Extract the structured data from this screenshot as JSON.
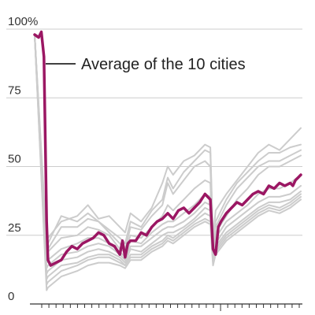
{
  "chart_data": {
    "type": "line",
    "title": "",
    "xlabel": "",
    "ylabel": "",
    "ylim": [
      0,
      100
    ],
    "xlim": [
      0,
      100
    ],
    "y_ticks": [
      {
        "value": 100,
        "label": "100%"
      },
      {
        "value": 75,
        "label": "75"
      },
      {
        "value": 50,
        "label": "50"
      },
      {
        "value": 25,
        "label": "25"
      },
      {
        "value": 0,
        "label": "0"
      }
    ],
    "x_tick_count": 37,
    "x_major_tick_index": 25,
    "grid": true,
    "annotation": "Average of the 10 cities",
    "colors": {
      "average": "#9b1763",
      "cities": "#cccccc",
      "grid": "#cccccc",
      "axis": "#333333",
      "text": "#333333"
    },
    "series": [
      {
        "name": "Average of the 10 cities",
        "highlight": true,
        "x": [
          0,
          1.5,
          2.5,
          3.5,
          4.5,
          5,
          6,
          8,
          10,
          12,
          14,
          16,
          18,
          20,
          22,
          24,
          26,
          28,
          30,
          32,
          33,
          34,
          35,
          36,
          38,
          40,
          42,
          44,
          46,
          48,
          50,
          52,
          54,
          56,
          58,
          60,
          62,
          64,
          66,
          67,
          68,
          69,
          70,
          72,
          74,
          76,
          78,
          80,
          82,
          84,
          86,
          88,
          90,
          92,
          94,
          96,
          97,
          98,
          99,
          100
        ],
        "y": [
          98,
          97,
          99,
          90,
          30,
          16,
          14,
          15,
          16,
          19,
          21,
          20,
          22,
          23,
          24,
          26,
          25,
          22,
          21,
          18,
          23,
          17,
          22,
          23,
          23,
          26,
          25,
          28,
          30,
          31,
          33,
          31,
          34,
          35,
          33,
          35,
          37,
          40,
          38,
          20,
          18,
          28,
          30,
          33,
          35,
          37,
          36,
          38,
          40,
          41,
          40,
          43,
          42,
          44,
          43,
          44,
          43,
          45,
          46,
          47
        ]
      },
      {
        "name": "",
        "x": [
          0,
          4.5,
          5,
          10,
          16,
          20,
          24,
          28,
          32,
          34,
          36,
          40,
          44,
          48,
          50,
          52,
          56,
          60,
          64,
          66,
          67,
          68,
          72,
          76,
          80,
          84,
          88,
          92,
          96,
          100
        ],
        "y": [
          98,
          22,
          24,
          30,
          32,
          36,
          31,
          32,
          28,
          26,
          33,
          30,
          35,
          44,
          50,
          47,
          52,
          54,
          58,
          57,
          24,
          34,
          40,
          45,
          50,
          55,
          58,
          56,
          60,
          64
        ]
      },
      {
        "name": "",
        "x": [
          0,
          4.5,
          5,
          10,
          16,
          20,
          24,
          28,
          32,
          34,
          36,
          40,
          44,
          48,
          50,
          52,
          56,
          60,
          64,
          66,
          67,
          68,
          72,
          76,
          80,
          84,
          88,
          92,
          96,
          100
        ],
        "y": [
          98,
          20,
          22,
          32,
          30,
          33,
          30,
          27,
          24,
          22,
          30,
          28,
          34,
          38,
          46,
          42,
          48,
          52,
          56,
          55,
          22,
          30,
          38,
          44,
          48,
          52,
          55,
          55,
          57,
          58
        ]
      },
      {
        "name": "",
        "x": [
          0,
          4.5,
          5,
          10,
          16,
          20,
          24,
          28,
          32,
          34,
          36,
          40,
          44,
          48,
          50,
          52,
          56,
          60,
          64,
          66,
          67,
          68,
          72,
          76,
          80,
          84,
          88,
          92,
          96,
          100
        ],
        "y": [
          98,
          18,
          20,
          28,
          28,
          31,
          30,
          26,
          22,
          20,
          28,
          27,
          32,
          36,
          44,
          40,
          45,
          50,
          52,
          50,
          20,
          28,
          36,
          42,
          46,
          50,
          52,
          52,
          54,
          56
        ]
      },
      {
        "name": "",
        "x": [
          0,
          4.5,
          5,
          10,
          16,
          20,
          24,
          28,
          32,
          34,
          36,
          40,
          44,
          48,
          50,
          52,
          56,
          60,
          64,
          66,
          67,
          68,
          72,
          76,
          80,
          84,
          88,
          92,
          96,
          100
        ],
        "y": [
          98,
          17,
          19,
          24,
          25,
          28,
          27,
          25,
          20,
          19,
          25,
          24,
          28,
          32,
          36,
          34,
          38,
          42,
          45,
          44,
          18,
          26,
          32,
          38,
          42,
          47,
          50,
          50,
          52,
          54
        ]
      },
      {
        "name": "",
        "x": [
          0,
          4.5,
          5,
          10,
          16,
          20,
          24,
          28,
          32,
          34,
          36,
          40,
          44,
          48,
          50,
          52,
          56,
          60,
          64,
          66,
          67,
          68,
          72,
          76,
          80,
          84,
          88,
          92,
          96,
          100
        ],
        "y": [
          98,
          15,
          16,
          20,
          22,
          24,
          24,
          22,
          19,
          17,
          23,
          22,
          26,
          29,
          30,
          30,
          33,
          36,
          40,
          39,
          17,
          24,
          30,
          33,
          36,
          40,
          42,
          42,
          44,
          47
        ]
      },
      {
        "name": "",
        "x": [
          0,
          4.5,
          5,
          10,
          16,
          20,
          24,
          28,
          32,
          34,
          36,
          40,
          44,
          48,
          50,
          52,
          56,
          60,
          64,
          66,
          67,
          68,
          72,
          76,
          80,
          84,
          88,
          92,
          96,
          100
        ],
        "y": [
          98,
          13,
          14,
          18,
          19,
          21,
          22,
          21,
          18,
          16,
          21,
          21,
          24,
          27,
          28,
          28,
          30,
          33,
          37,
          36,
          16,
          22,
          28,
          31,
          34,
          37,
          39,
          39,
          40,
          43
        ]
      },
      {
        "name": "",
        "x": [
          0,
          4.5,
          5,
          10,
          16,
          20,
          24,
          28,
          32,
          34,
          36,
          40,
          44,
          48,
          50,
          52,
          56,
          60,
          64,
          66,
          67,
          68,
          72,
          76,
          80,
          84,
          88,
          92,
          96,
          100
        ],
        "y": [
          98,
          11,
          12,
          16,
          17,
          19,
          20,
          19,
          17,
          15,
          20,
          19,
          22,
          25,
          26,
          26,
          28,
          31,
          35,
          34,
          15,
          21,
          26,
          29,
          32,
          35,
          37,
          37,
          38,
          41
        ]
      },
      {
        "name": "",
        "x": [
          0,
          4.5,
          5,
          10,
          16,
          20,
          24,
          28,
          32,
          34,
          36,
          40,
          44,
          48,
          50,
          52,
          56,
          60,
          64,
          66,
          67,
          68,
          72,
          76,
          80,
          84,
          88,
          92,
          96,
          100
        ],
        "y": [
          98,
          9,
          10,
          14,
          15,
          17,
          18,
          18,
          16,
          14,
          18,
          18,
          21,
          23,
          25,
          24,
          27,
          30,
          33,
          32,
          16,
          20,
          25,
          28,
          31,
          34,
          36,
          35,
          37,
          40
        ]
      },
      {
        "name": "",
        "x": [
          0,
          4.5,
          5,
          10,
          16,
          20,
          24,
          28,
          32,
          34,
          36,
          40,
          44,
          48,
          50,
          52,
          56,
          60,
          64,
          66,
          67,
          68,
          72,
          76,
          80,
          84,
          88,
          92,
          96,
          100
        ],
        "y": [
          98,
          7,
          8,
          12,
          14,
          16,
          17,
          17,
          15,
          14,
          17,
          17,
          20,
          22,
          24,
          23,
          26,
          29,
          31,
          30,
          15,
          19,
          24,
          27,
          30,
          33,
          35,
          34,
          36,
          39
        ]
      },
      {
        "name": "",
        "x": [
          0,
          4.5,
          5,
          10,
          16,
          20,
          24,
          28,
          32,
          34,
          36,
          40,
          44,
          48,
          50,
          52,
          56,
          60,
          64,
          66,
          67,
          68,
          72,
          76,
          80,
          84,
          88,
          92,
          96,
          100
        ],
        "y": [
          98,
          5,
          6,
          10,
          12,
          14,
          15,
          15,
          14,
          13,
          16,
          16,
          19,
          21,
          23,
          22,
          25,
          28,
          30,
          29,
          14,
          18,
          23,
          26,
          29,
          32,
          34,
          33,
          35,
          38
        ]
      }
    ]
  }
}
